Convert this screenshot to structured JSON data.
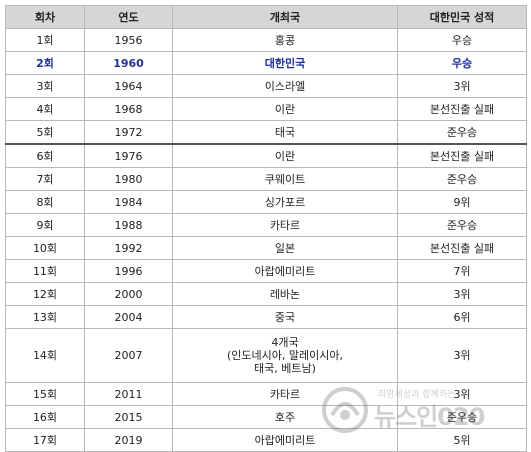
{
  "table": {
    "headers": [
      "회차",
      "연도",
      "개최국",
      "대한민국 성적"
    ],
    "rows": [
      [
        "1회",
        "1956",
        "홍콩",
        "우승"
      ],
      [
        "2회",
        "1960",
        "대한민국",
        "우승"
      ],
      [
        "3회",
        "1964",
        "이스라엘",
        "3위"
      ],
      [
        "4회",
        "1968",
        "이란",
        "본선진출 실패"
      ],
      [
        "5회",
        "1972",
        "태국",
        "준우승"
      ],
      [
        "6회",
        "1976",
        "이란",
        "본선진출 실패"
      ],
      [
        "7회",
        "1980",
        "쿠웨이트",
        "준우승"
      ],
      [
        "8회",
        "1984",
        "싱가포르",
        "9위"
      ],
      [
        "9회",
        "1988",
        "카타르",
        "준우승"
      ],
      [
        "10회",
        "1992",
        "일본",
        "본선진출 실패"
      ],
      [
        "11회",
        "1996",
        "아랍에미리트",
        "7위"
      ],
      [
        "12회",
        "2000",
        "레바논",
        "3위"
      ],
      [
        "13회",
        "2004",
        "중국",
        "6위"
      ],
      [
        "14회",
        "2007",
        "4개국\n(인도네시아, 말레이시아,\n태국, 베트남)",
        "3위"
      ],
      [
        "15회",
        "2011",
        "카타르",
        "3위"
      ],
      [
        "16회",
        "2015",
        "호주",
        "준우승"
      ],
      [
        "17회",
        "2019",
        "아랍에미리트",
        "5위"
      ]
    ]
  },
  "watermark": {
    "tagline": "희망세상과 함께하는",
    "brand": "뉴스인020"
  }
}
